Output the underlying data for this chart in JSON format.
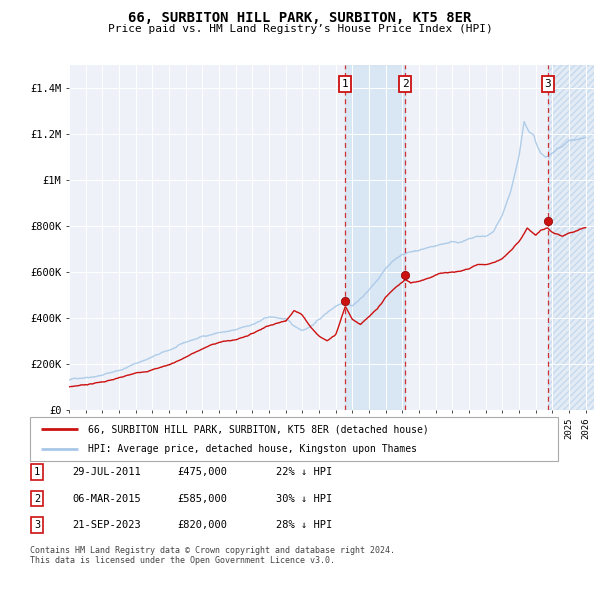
{
  "title": "66, SURBITON HILL PARK, SURBITON, KT5 8ER",
  "subtitle": "Price paid vs. HM Land Registry’s House Price Index (HPI)",
  "legend_line1": "66, SURBITON HILL PARK, SURBITON, KT5 8ER (detached house)",
  "legend_line2": "HPI: Average price, detached house, Kingston upon Thames",
  "footnote1": "Contains HM Land Registry data © Crown copyright and database right 2024.",
  "footnote2": "This data is licensed under the Open Government Licence v3.0.",
  "sales": [
    {
      "label": "1",
      "date": "29-JUL-2011",
      "price": 475000,
      "pct": "22%",
      "dir": "↓",
      "year": 2011.58
    },
    {
      "label": "2",
      "date": "06-MAR-2015",
      "price": 585000,
      "pct": "30%",
      "dir": "↓",
      "year": 2015.17
    },
    {
      "label": "3",
      "date": "21-SEP-2023",
      "price": 820000,
      "pct": "28%",
      "dir": "↓",
      "year": 2023.72
    }
  ],
  "hpi_color": "#a8c8e8",
  "sale_color": "#cc1111",
  "ylim": [
    0,
    1500000
  ],
  "xlim_start": 1995.0,
  "xlim_end": 2026.5,
  "background_color": "#eef2f8",
  "shade_color": "#ccdff0",
  "hatch_color": "#a8c8e8"
}
